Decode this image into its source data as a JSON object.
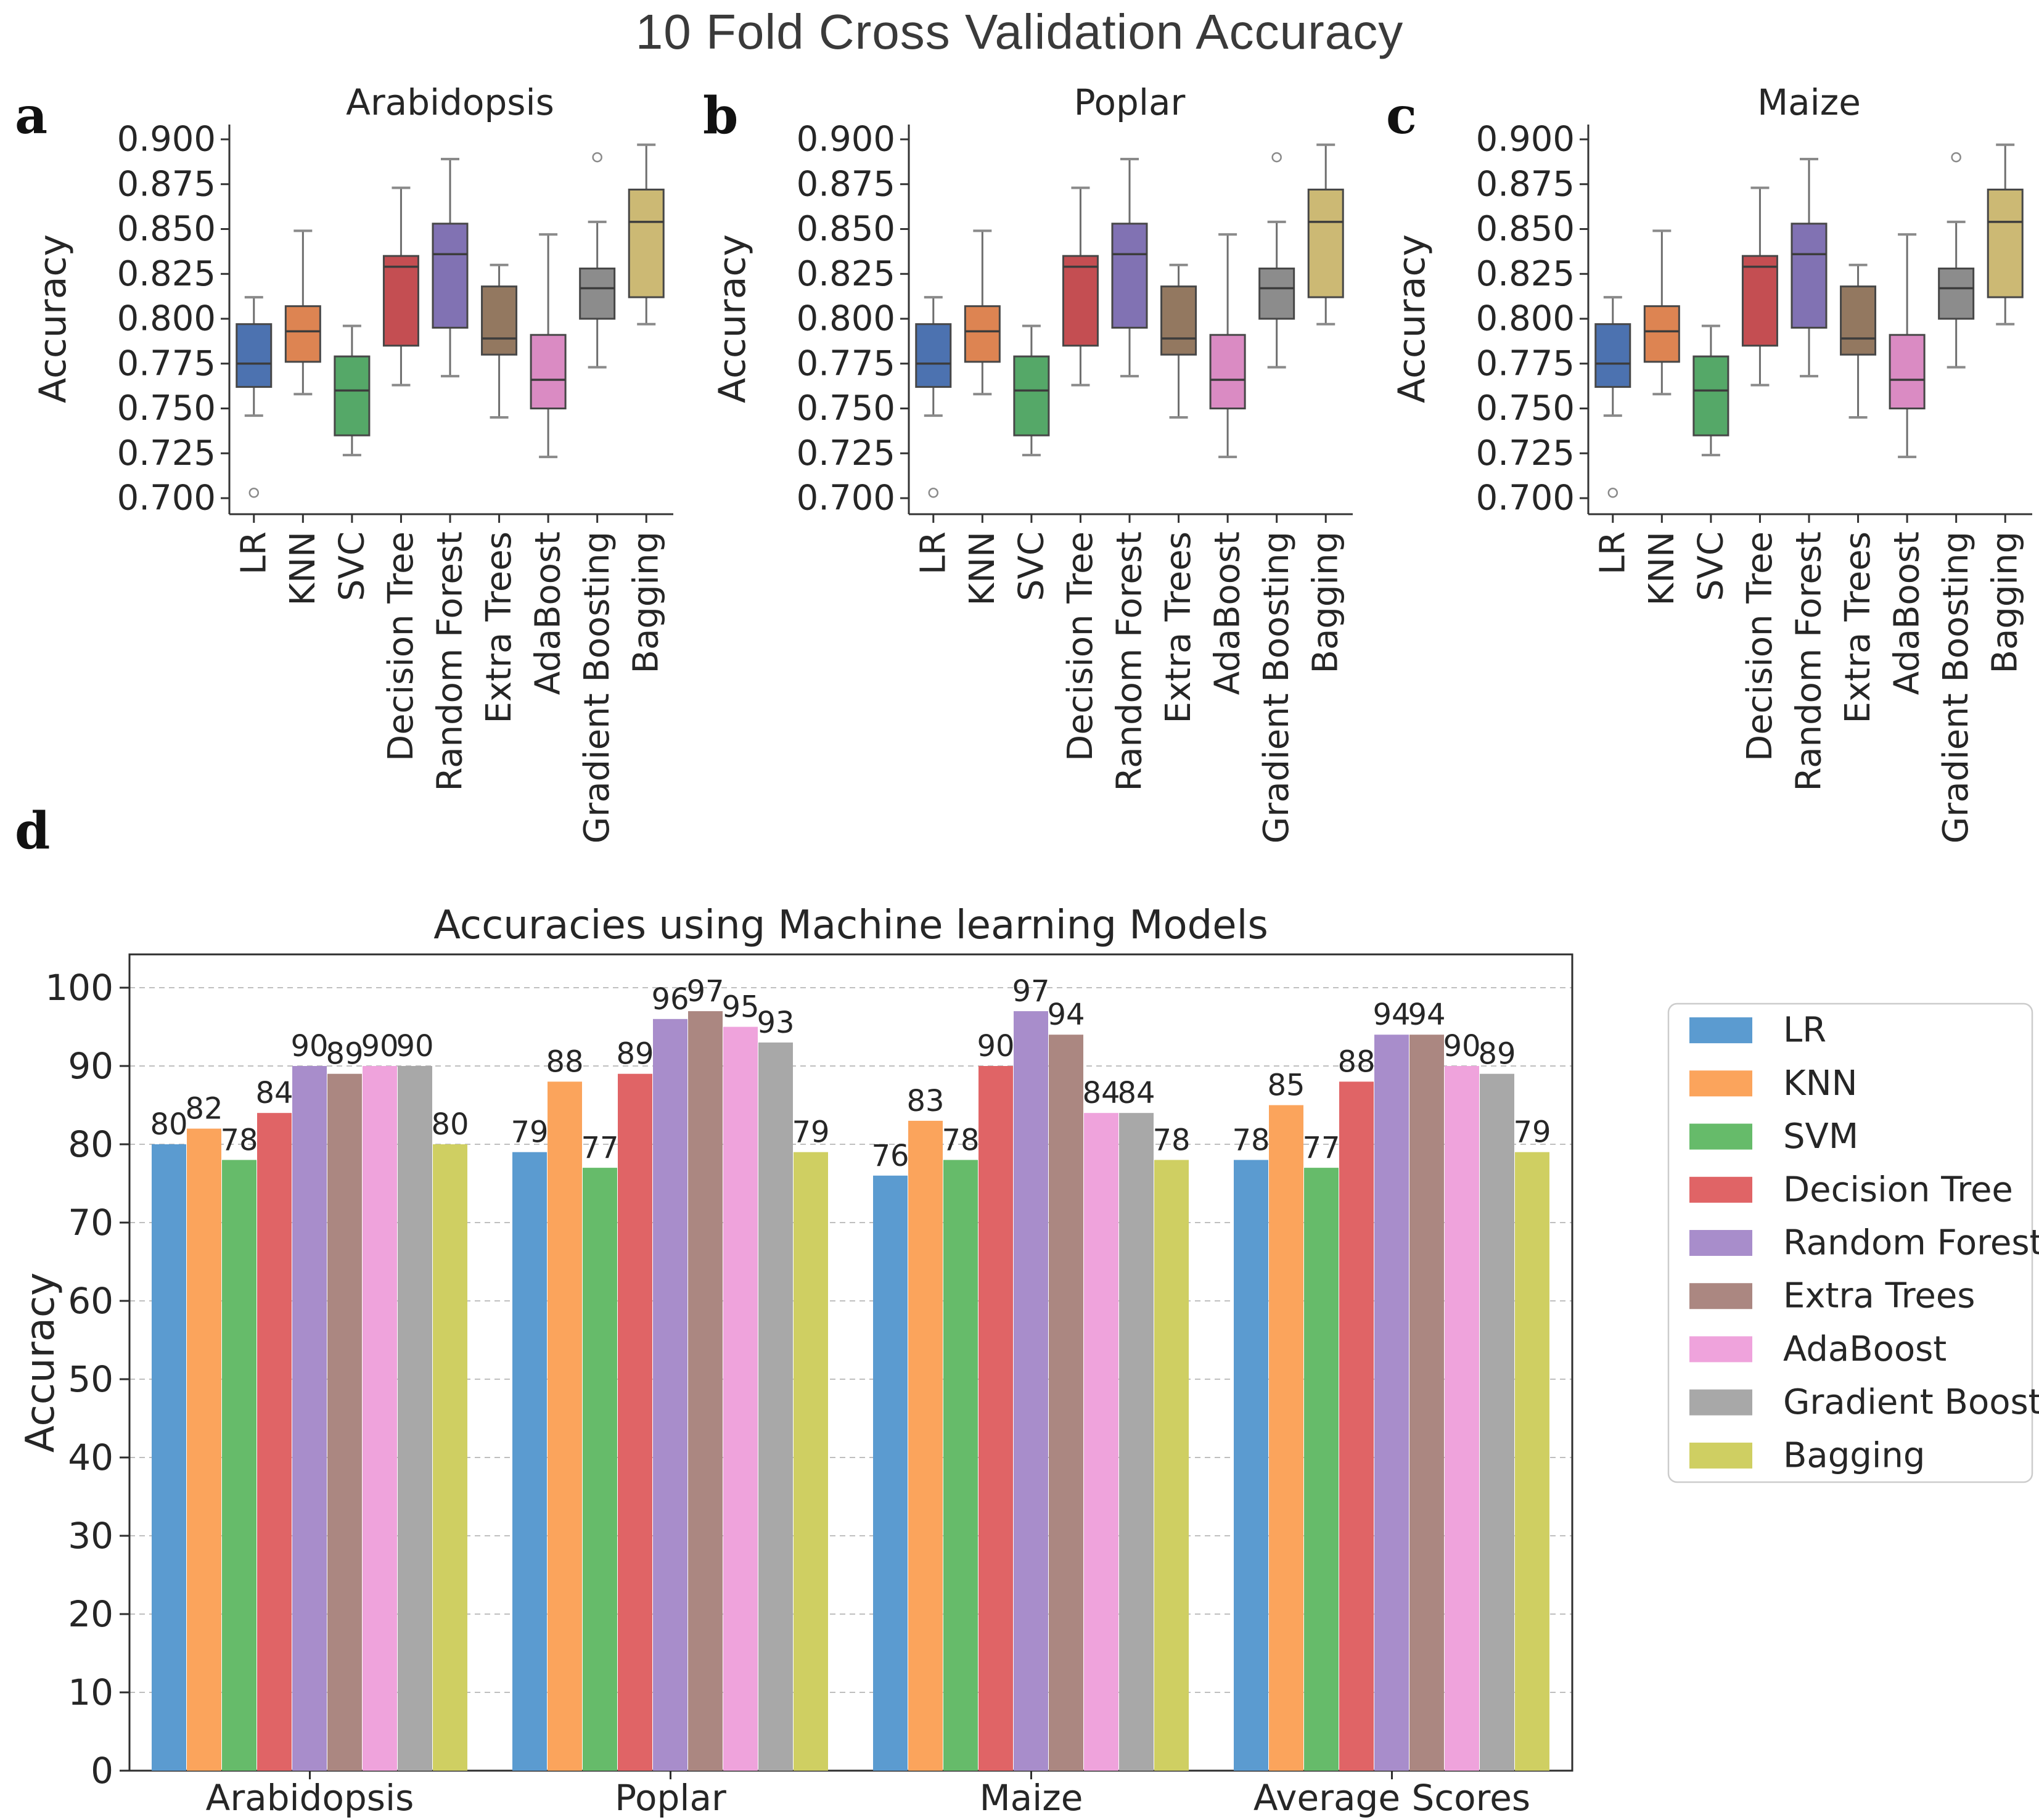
{
  "page": {
    "title": "10 Fold Cross Validation Accuracy"
  },
  "panel_letters": {
    "a": "a",
    "b": "b",
    "c": "c",
    "d": "d"
  },
  "chart_data": [
    {
      "id": "a",
      "type": "box",
      "title": "Arabidopsis",
      "ylabel": "Accuracy",
      "ylim": [
        0.695,
        0.905
      ],
      "grid": "off",
      "yticks": [
        "0.700",
        "0.725",
        "0.750",
        "0.775",
        "0.800",
        "0.825",
        "0.850",
        "0.875",
        "0.900"
      ],
      "categories": [
        "LR",
        "KNN",
        "SVC",
        "Decision Tree",
        "Random Forest",
        "Extra Trees",
        "AdaBoost",
        "Gradient Boosting",
        "Bagging"
      ],
      "boxes": [
        {
          "label": "LR",
          "color": "#4C72B0",
          "whislo": 0.746,
          "q1": 0.762,
          "med": 0.775,
          "q3": 0.797,
          "whishi": 0.812,
          "fliers": [
            0.703
          ]
        },
        {
          "label": "KNN",
          "color": "#DD8452",
          "whislo": 0.758,
          "q1": 0.776,
          "med": 0.793,
          "q3": 0.807,
          "whishi": 0.849,
          "fliers": []
        },
        {
          "label": "SVC",
          "color": "#55A868",
          "whislo": 0.724,
          "q1": 0.735,
          "med": 0.76,
          "q3": 0.779,
          "whishi": 0.796,
          "fliers": []
        },
        {
          "label": "Decision Tree",
          "color": "#C44E52",
          "whislo": 0.763,
          "q1": 0.785,
          "med": 0.829,
          "q3": 0.835,
          "whishi": 0.873,
          "fliers": []
        },
        {
          "label": "Random Forest",
          "color": "#8172B3",
          "whislo": 0.768,
          "q1": 0.795,
          "med": 0.836,
          "q3": 0.853,
          "whishi": 0.889,
          "fliers": []
        },
        {
          "label": "Extra Trees",
          "color": "#937860",
          "whislo": 0.745,
          "q1": 0.78,
          "med": 0.789,
          "q3": 0.818,
          "whishi": 0.83,
          "fliers": []
        },
        {
          "label": "AdaBoost",
          "color": "#DA8BC3",
          "whislo": 0.723,
          "q1": 0.75,
          "med": 0.766,
          "q3": 0.791,
          "whishi": 0.847,
          "fliers": []
        },
        {
          "label": "Gradient Boosting",
          "color": "#8C8C8C",
          "whislo": 0.773,
          "q1": 0.8,
          "med": 0.817,
          "q3": 0.828,
          "whishi": 0.854,
          "fliers": [
            0.89
          ]
        },
        {
          "label": "Bagging",
          "color": "#CCB974",
          "whislo": 0.797,
          "q1": 0.812,
          "med": 0.854,
          "q3": 0.872,
          "whishi": 0.897,
          "fliers": []
        }
      ]
    },
    {
      "id": "b",
      "type": "box",
      "title": "Poplar",
      "ylabel": "Accuracy",
      "ylim": [
        0.695,
        0.905
      ],
      "grid": "off",
      "yticks": [
        "0.700",
        "0.725",
        "0.750",
        "0.775",
        "0.800",
        "0.825",
        "0.850",
        "0.875",
        "0.900"
      ],
      "categories": [
        "LR",
        "KNN",
        "SVC",
        "Decision Tree",
        "Random Forest",
        "Extra Trees",
        "AdaBoost",
        "Gradient Boosting",
        "Bagging"
      ],
      "boxes": [
        {
          "label": "LR",
          "color": "#4C72B0",
          "whislo": 0.746,
          "q1": 0.762,
          "med": 0.775,
          "q3": 0.797,
          "whishi": 0.812,
          "fliers": [
            0.703
          ]
        },
        {
          "label": "KNN",
          "color": "#DD8452",
          "whislo": 0.758,
          "q1": 0.776,
          "med": 0.793,
          "q3": 0.807,
          "whishi": 0.849,
          "fliers": []
        },
        {
          "label": "SVC",
          "color": "#55A868",
          "whislo": 0.724,
          "q1": 0.735,
          "med": 0.76,
          "q3": 0.779,
          "whishi": 0.796,
          "fliers": []
        },
        {
          "label": "Decision Tree",
          "color": "#C44E52",
          "whislo": 0.763,
          "q1": 0.785,
          "med": 0.829,
          "q3": 0.835,
          "whishi": 0.873,
          "fliers": []
        },
        {
          "label": "Random Forest",
          "color": "#8172B3",
          "whislo": 0.768,
          "q1": 0.795,
          "med": 0.836,
          "q3": 0.853,
          "whishi": 0.889,
          "fliers": []
        },
        {
          "label": "Extra Trees",
          "color": "#937860",
          "whislo": 0.745,
          "q1": 0.78,
          "med": 0.789,
          "q3": 0.818,
          "whishi": 0.83,
          "fliers": []
        },
        {
          "label": "AdaBoost",
          "color": "#DA8BC3",
          "whislo": 0.723,
          "q1": 0.75,
          "med": 0.766,
          "q3": 0.791,
          "whishi": 0.847,
          "fliers": []
        },
        {
          "label": "Gradient Boosting",
          "color": "#8C8C8C",
          "whislo": 0.773,
          "q1": 0.8,
          "med": 0.817,
          "q3": 0.828,
          "whishi": 0.854,
          "fliers": [
            0.89
          ]
        },
        {
          "label": "Bagging",
          "color": "#CCB974",
          "whislo": 0.797,
          "q1": 0.812,
          "med": 0.854,
          "q3": 0.872,
          "whishi": 0.897,
          "fliers": []
        }
      ]
    },
    {
      "id": "c",
      "type": "box",
      "title": "Maize",
      "ylabel": "Accuracy",
      "ylim": [
        0.695,
        0.905
      ],
      "grid": "off",
      "yticks": [
        "0.700",
        "0.725",
        "0.750",
        "0.775",
        "0.800",
        "0.825",
        "0.850",
        "0.875",
        "0.900"
      ],
      "categories": [
        "LR",
        "KNN",
        "SVC",
        "Decision Tree",
        "Random Forest",
        "Extra Trees",
        "AdaBoost",
        "Gradient Boosting",
        "Bagging"
      ],
      "boxes": [
        {
          "label": "LR",
          "color": "#4C72B0",
          "whislo": 0.746,
          "q1": 0.762,
          "med": 0.775,
          "q3": 0.797,
          "whishi": 0.812,
          "fliers": [
            0.703
          ]
        },
        {
          "label": "KNN",
          "color": "#DD8452",
          "whislo": 0.758,
          "q1": 0.776,
          "med": 0.793,
          "q3": 0.807,
          "whishi": 0.849,
          "fliers": []
        },
        {
          "label": "SVC",
          "color": "#55A868",
          "whislo": 0.724,
          "q1": 0.735,
          "med": 0.76,
          "q3": 0.779,
          "whishi": 0.796,
          "fliers": []
        },
        {
          "label": "Decision Tree",
          "color": "#C44E52",
          "whislo": 0.763,
          "q1": 0.785,
          "med": 0.829,
          "q3": 0.835,
          "whishi": 0.873,
          "fliers": []
        },
        {
          "label": "Random Forest",
          "color": "#8172B3",
          "whislo": 0.768,
          "q1": 0.795,
          "med": 0.836,
          "q3": 0.853,
          "whishi": 0.889,
          "fliers": []
        },
        {
          "label": "Extra Trees",
          "color": "#937860",
          "whislo": 0.745,
          "q1": 0.78,
          "med": 0.789,
          "q3": 0.818,
          "whishi": 0.83,
          "fliers": []
        },
        {
          "label": "AdaBoost",
          "color": "#DA8BC3",
          "whislo": 0.723,
          "q1": 0.75,
          "med": 0.766,
          "q3": 0.791,
          "whishi": 0.847,
          "fliers": []
        },
        {
          "label": "Gradient Boosting",
          "color": "#8C8C8C",
          "whislo": 0.773,
          "q1": 0.8,
          "med": 0.817,
          "q3": 0.828,
          "whishi": 0.854,
          "fliers": [
            0.89
          ]
        },
        {
          "label": "Bagging",
          "color": "#CCB974",
          "whislo": 0.797,
          "q1": 0.812,
          "med": 0.854,
          "q3": 0.872,
          "whishi": 0.897,
          "fliers": []
        }
      ]
    },
    {
      "id": "d",
      "type": "bar",
      "title": "Accuracies using Machine learning Models",
      "ylabel": "Accuracy",
      "ylim": [
        0,
        102
      ],
      "grid": "dashed-horizontal",
      "yticks": [
        "0",
        "10",
        "20",
        "30",
        "40",
        "50",
        "60",
        "70",
        "80",
        "90",
        "100"
      ],
      "categories": [
        "Arabidopsis",
        "Poplar",
        "Maize",
        "Average Scores"
      ],
      "bar_labels": true,
      "legend_position": "right",
      "series": [
        {
          "name": "LR",
          "color": "#5B9BD0",
          "values": [
            80,
            79,
            76,
            78
          ]
        },
        {
          "name": "KNN",
          "color": "#FBA45C",
          "values": [
            82,
            88,
            83,
            85
          ]
        },
        {
          "name": "SVM",
          "color": "#66BB6A",
          "values": [
            78,
            77,
            78,
            77
          ]
        },
        {
          "name": "Decision Tree",
          "color": "#E06466",
          "values": [
            84,
            89,
            90,
            88
          ]
        },
        {
          "name": "Random Forest",
          "color": "#A88DCB",
          "values": [
            90,
            96,
            97,
            94
          ]
        },
        {
          "name": "Extra Trees",
          "color": "#AB8781",
          "values": [
            89,
            97,
            94,
            94
          ]
        },
        {
          "name": "AdaBoost",
          "color": "#EFA3DC",
          "values": [
            90,
            95,
            84,
            90
          ]
        },
        {
          "name": "Gradient Boost",
          "color": "#A8A8A8",
          "values": [
            90,
            93,
            84,
            89
          ]
        },
        {
          "name": "Bagging",
          "color": "#CFCF62",
          "values": [
            80,
            79,
            78,
            79
          ]
        }
      ]
    }
  ]
}
